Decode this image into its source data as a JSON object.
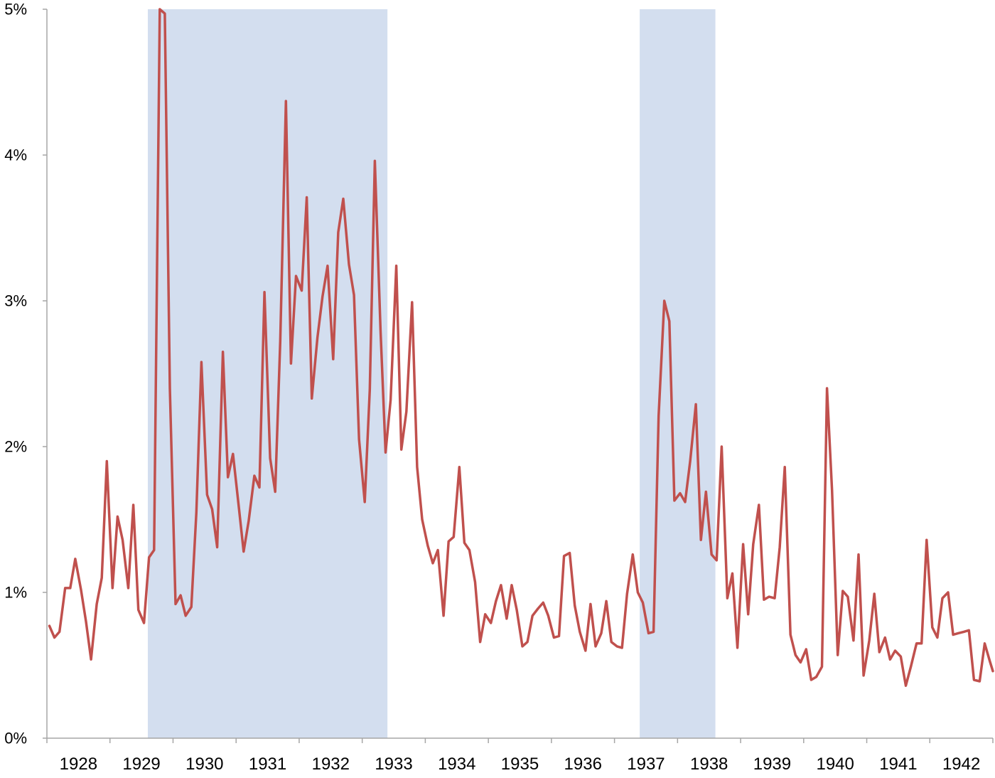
{
  "chart_data": {
    "type": "line",
    "title": "",
    "xlabel": "",
    "ylabel": "",
    "xlim": [
      1928.0,
      1943.0
    ],
    "ylim": [
      0,
      5
    ],
    "grid": false,
    "legend": "none",
    "y_tick_labels": [
      "0%",
      "1%",
      "2%",
      "3%",
      "4%",
      "5%"
    ],
    "y_tick_values": [
      0,
      1,
      2,
      3,
      4,
      5
    ],
    "x_tick_labels": [
      "1928",
      "1929",
      "1930",
      "1931",
      "1932",
      "1933",
      "1934",
      "1935",
      "1936",
      "1937",
      "1938",
      "1939",
      "1940",
      "1941",
      "1942"
    ],
    "x_tick_values": [
      1928,
      1929,
      1930,
      1931,
      1932,
      1933,
      1934,
      1935,
      1936,
      1937,
      1938,
      1939,
      1940,
      1941,
      1942
    ],
    "shaded_periods": [
      {
        "start": 1929.6,
        "end": 1933.4
      },
      {
        "start": 1937.4,
        "end": 1938.6
      }
    ],
    "colors": {
      "line": "#c0504d",
      "shade": "#d3deef",
      "axis": "#a6a6a6"
    },
    "series": [
      {
        "values": [
          [
            1928.04,
            0.77
          ],
          [
            1928.12,
            0.69
          ],
          [
            1928.2,
            0.73
          ],
          [
            1928.29,
            1.03
          ],
          [
            1928.37,
            1.03
          ],
          [
            1928.45,
            1.23
          ],
          [
            1928.54,
            1.02
          ],
          [
            1928.62,
            0.8
          ],
          [
            1928.7,
            0.54
          ],
          [
            1928.79,
            0.92
          ],
          [
            1928.87,
            1.1
          ],
          [
            1928.95,
            1.9
          ],
          [
            1929.04,
            1.03
          ],
          [
            1929.12,
            1.52
          ],
          [
            1929.2,
            1.36
          ],
          [
            1929.29,
            1.03
          ],
          [
            1929.37,
            1.6
          ],
          [
            1929.45,
            0.88
          ],
          [
            1929.54,
            0.79
          ],
          [
            1929.62,
            1.24
          ],
          [
            1929.7,
            1.29
          ],
          [
            1929.79,
            5.0
          ],
          [
            1929.87,
            4.97
          ],
          [
            1929.95,
            2.4
          ],
          [
            1930.04,
            0.92
          ],
          [
            1930.12,
            0.98
          ],
          [
            1930.2,
            0.84
          ],
          [
            1930.29,
            0.9
          ],
          [
            1930.37,
            1.55
          ],
          [
            1930.45,
            2.58
          ],
          [
            1930.54,
            1.67
          ],
          [
            1930.62,
            1.57
          ],
          [
            1930.7,
            1.31
          ],
          [
            1930.79,
            2.65
          ],
          [
            1930.87,
            1.79
          ],
          [
            1930.95,
            1.95
          ],
          [
            1931.04,
            1.6
          ],
          [
            1931.12,
            1.28
          ],
          [
            1931.2,
            1.49
          ],
          [
            1931.29,
            1.8
          ],
          [
            1931.37,
            1.72
          ],
          [
            1931.45,
            3.06
          ],
          [
            1931.54,
            1.92
          ],
          [
            1931.62,
            1.69
          ],
          [
            1931.7,
            2.72
          ],
          [
            1931.79,
            4.37
          ],
          [
            1931.87,
            2.57
          ],
          [
            1931.95,
            3.17
          ],
          [
            1932.04,
            3.07
          ],
          [
            1932.12,
            3.71
          ],
          [
            1932.2,
            2.33
          ],
          [
            1932.29,
            2.75
          ],
          [
            1932.37,
            3.03
          ],
          [
            1932.45,
            3.24
          ],
          [
            1932.54,
            2.6
          ],
          [
            1932.62,
            3.47
          ],
          [
            1932.7,
            3.7
          ],
          [
            1932.79,
            3.25
          ],
          [
            1932.87,
            3.04
          ],
          [
            1932.95,
            2.05
          ],
          [
            1933.04,
            1.62
          ],
          [
            1933.12,
            2.39
          ],
          [
            1933.2,
            3.96
          ],
          [
            1933.29,
            2.8
          ],
          [
            1933.37,
            1.96
          ],
          [
            1933.45,
            2.32
          ],
          [
            1933.54,
            3.24
          ],
          [
            1933.62,
            1.98
          ],
          [
            1933.7,
            2.24
          ],
          [
            1933.79,
            2.99
          ],
          [
            1933.87,
            1.86
          ],
          [
            1933.95,
            1.5
          ],
          [
            1934.04,
            1.32
          ],
          [
            1934.12,
            1.2
          ],
          [
            1934.2,
            1.29
          ],
          [
            1934.29,
            0.84
          ],
          [
            1934.37,
            1.35
          ],
          [
            1934.45,
            1.38
          ],
          [
            1934.54,
            1.86
          ],
          [
            1934.62,
            1.34
          ],
          [
            1934.7,
            1.29
          ],
          [
            1934.79,
            1.07
          ],
          [
            1934.87,
            0.66
          ],
          [
            1934.95,
            0.85
          ],
          [
            1935.04,
            0.79
          ],
          [
            1935.12,
            0.94
          ],
          [
            1935.2,
            1.05
          ],
          [
            1935.29,
            0.82
          ],
          [
            1935.37,
            1.05
          ],
          [
            1935.45,
            0.88
          ],
          [
            1935.54,
            0.63
          ],
          [
            1935.62,
            0.66
          ],
          [
            1935.7,
            0.84
          ],
          [
            1935.79,
            0.89
          ],
          [
            1935.87,
            0.93
          ],
          [
            1935.95,
            0.84
          ],
          [
            1936.04,
            0.69
          ],
          [
            1936.12,
            0.7
          ],
          [
            1936.2,
            1.25
          ],
          [
            1936.29,
            1.27
          ],
          [
            1936.37,
            0.91
          ],
          [
            1936.45,
            0.73
          ],
          [
            1936.54,
            0.6
          ],
          [
            1936.62,
            0.92
          ],
          [
            1936.7,
            0.63
          ],
          [
            1936.79,
            0.72
          ],
          [
            1936.87,
            0.94
          ],
          [
            1936.95,
            0.66
          ],
          [
            1937.04,
            0.63
          ],
          [
            1937.12,
            0.62
          ],
          [
            1937.2,
            0.99
          ],
          [
            1937.29,
            1.26
          ],
          [
            1937.37,
            1.0
          ],
          [
            1937.45,
            0.93
          ],
          [
            1937.54,
            0.72
          ],
          [
            1937.62,
            0.73
          ],
          [
            1937.7,
            2.21
          ],
          [
            1937.79,
            3.0
          ],
          [
            1937.87,
            2.86
          ],
          [
            1937.95,
            1.63
          ],
          [
            1938.04,
            1.68
          ],
          [
            1938.12,
            1.62
          ],
          [
            1938.2,
            1.9
          ],
          [
            1938.29,
            2.29
          ],
          [
            1938.37,
            1.36
          ],
          [
            1938.45,
            1.69
          ],
          [
            1938.54,
            1.26
          ],
          [
            1938.62,
            1.22
          ],
          [
            1938.7,
            2.0
          ],
          [
            1938.79,
            0.96
          ],
          [
            1938.87,
            1.13
          ],
          [
            1938.95,
            0.62
          ],
          [
            1939.04,
            1.33
          ],
          [
            1939.12,
            0.85
          ],
          [
            1939.2,
            1.33
          ],
          [
            1939.29,
            1.6
          ],
          [
            1939.37,
            0.95
          ],
          [
            1939.45,
            0.97
          ],
          [
            1939.54,
            0.96
          ],
          [
            1939.62,
            1.31
          ],
          [
            1939.7,
            1.86
          ],
          [
            1939.79,
            0.71
          ],
          [
            1939.87,
            0.57
          ],
          [
            1939.95,
            0.52
          ],
          [
            1940.04,
            0.61
          ],
          [
            1940.12,
            0.4
          ],
          [
            1940.2,
            0.42
          ],
          [
            1940.29,
            0.49
          ],
          [
            1940.37,
            2.4
          ],
          [
            1940.45,
            1.7
          ],
          [
            1940.54,
            0.57
          ],
          [
            1940.62,
            1.01
          ],
          [
            1940.7,
            0.97
          ],
          [
            1940.79,
            0.67
          ],
          [
            1940.87,
            1.26
          ],
          [
            1940.95,
            0.43
          ],
          [
            1941.04,
            0.67
          ],
          [
            1941.12,
            0.99
          ],
          [
            1941.2,
            0.59
          ],
          [
            1941.29,
            0.69
          ],
          [
            1941.37,
            0.54
          ],
          [
            1941.45,
            0.6
          ],
          [
            1941.54,
            0.56
          ],
          [
            1941.62,
            0.36
          ],
          [
            1941.7,
            0.49
          ],
          [
            1941.79,
            0.65
          ],
          [
            1941.87,
            0.65
          ],
          [
            1941.95,
            1.36
          ],
          [
            1942.04,
            0.76
          ],
          [
            1942.12,
            0.69
          ],
          [
            1942.2,
            0.96
          ],
          [
            1942.29,
            1.0
          ],
          [
            1942.37,
            0.71
          ],
          [
            1942.45,
            0.72
          ],
          [
            1942.54,
            0.73
          ],
          [
            1942.62,
            0.74
          ],
          [
            1942.7,
            0.4
          ],
          [
            1942.79,
            0.39
          ],
          [
            1942.87,
            0.65
          ],
          [
            1942.95,
            0.53
          ],
          [
            1943.0,
            0.46
          ]
        ]
      }
    ]
  }
}
